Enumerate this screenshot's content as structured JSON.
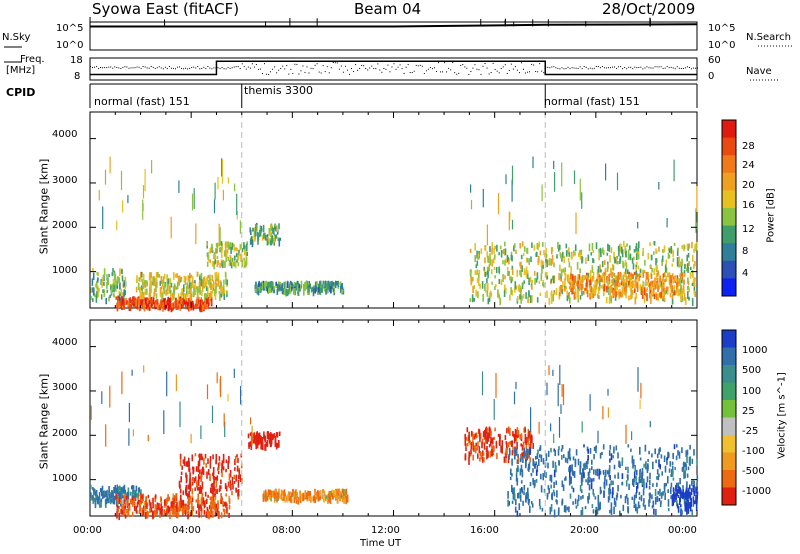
{
  "header": {
    "station": "Syowa East (fitACF)",
    "beam": "Beam 04",
    "date": "28/Oct/2009"
  },
  "strips": {
    "nsky_label": "N.Sky",
    "nsearch_label": "N.Search",
    "freq_label_line1": "Freq.",
    "freq_label_line2": "[MHz]",
    "nave_label": "Nave",
    "cpid_label": "CPID",
    "noise_left_ticks": [
      "10^5",
      "10^0"
    ],
    "noise_right_ticks": [
      "10^5",
      "10^0"
    ],
    "freq_ticks": [
      "18",
      "8"
    ],
    "nave_ticks": [
      "60",
      "0"
    ],
    "modes": [
      {
        "name": "normal (fast) 151",
        "start_hour": 0,
        "end_hour": 6
      },
      {
        "name": "themis 3300",
        "start_hour": 6,
        "end_hour": 18
      },
      {
        "name": "normal (fast) 151",
        "start_hour": 18,
        "end_hour": 24
      }
    ]
  },
  "axes": {
    "ylabel": "Slant Range [km]",
    "xlabel": "Time UT",
    "y_ticks": [
      "1000",
      "2000",
      "3000",
      "4000"
    ],
    "x_ticks": [
      "00:00",
      "04:00",
      "08:00",
      "12:00",
      "16:00",
      "20:00",
      "00:00"
    ]
  },
  "colorbars": {
    "power": {
      "label": "Power [dB]",
      "ticks": [
        "4",
        "8",
        "12",
        "16",
        "20",
        "24",
        "28"
      ],
      "colors": [
        "#0b22f0",
        "#2c4fb8",
        "#2f7f9a",
        "#3f9e6a",
        "#8ac440",
        "#e8c020",
        "#f0a020",
        "#f07a18",
        "#e84a10",
        "#e01a10"
      ]
    },
    "velocity": {
      "label": "Velocity [m s^-1]",
      "ticks": [
        "1000",
        "500",
        "100",
        "25",
        "-25",
        "-100",
        "-500",
        "-1000"
      ],
      "colors": [
        "#1a3ec8",
        "#2f6faa",
        "#3a8e8e",
        "#3fa26a",
        "#74c23c",
        "#c0c0c0",
        "#f0c030",
        "#f09a20",
        "#ee6a10",
        "#e02010"
      ]
    }
  },
  "chart_data": [
    {
      "type": "line",
      "title": "Syowa East (fitACF) Beam 04 28/Oct/2009",
      "series": [
        {
          "name": "N.Sky",
          "x_hours": [
            0,
            6,
            12,
            18,
            24
          ],
          "values_log10": [
            4.2,
            4.2,
            4.2,
            4.5,
            4.6
          ]
        },
        {
          "name": "N.Search",
          "x_hours": [
            0,
            6,
            12,
            18,
            24
          ],
          "values_log10": [
            4.2,
            4.2,
            4.2,
            4.5,
            4.6
          ]
        }
      ],
      "ylim_log10": [
        0,
        5
      ]
    },
    {
      "type": "line",
      "series": [
        {
          "name": "Freq.",
          "x_hours": [
            0,
            5,
            5,
            18,
            18,
            24
          ],
          "values": [
            10.5,
            10.5,
            16.5,
            16.5,
            10.5,
            10.5
          ]
        },
        {
          "name": "Nave",
          "x_hours": [
            0,
            6,
            6,
            18,
            18,
            24
          ],
          "values": [
            50,
            50,
            42,
            42,
            50,
            50
          ]
        }
      ],
      "ylim": [
        8,
        18
      ],
      "y2lim": [
        0,
        60
      ]
    },
    {
      "type": "heatmap",
      "quantity": "Power",
      "units": "dB",
      "xlabel": "Time UT",
      "ylabel": "Slant Range [km]",
      "xlim_hours": [
        0,
        24
      ],
      "ylim_km": [
        180,
        4600
      ],
      "zlim": [
        0,
        30
      ],
      "regions": [
        {
          "t0": 0.0,
          "t1": 1.4,
          "r0": 400,
          "r1": 1100,
          "value": 12
        },
        {
          "t0": 1.0,
          "t1": 4.8,
          "r0": 250,
          "r1": 450,
          "value": 26
        },
        {
          "t0": 1.8,
          "t1": 5.4,
          "r0": 500,
          "r1": 1000,
          "value": 16
        },
        {
          "t0": 4.6,
          "t1": 6.2,
          "r0": 1200,
          "r1": 1700,
          "value": 14
        },
        {
          "t0": 6.3,
          "t1": 7.5,
          "r0": 1700,
          "r1": 2100,
          "value": 12
        },
        {
          "t0": 6.5,
          "t1": 10.0,
          "r0": 600,
          "r1": 800,
          "value": 10
        },
        {
          "t0": 15.0,
          "t1": 24.0,
          "r0": 400,
          "r1": 1700,
          "value": 14
        },
        {
          "t0": 18.5,
          "t1": 23.5,
          "r0": 500,
          "r1": 1000,
          "value": 20
        }
      ]
    },
    {
      "type": "heatmap",
      "quantity": "Velocity",
      "units": "m s^-1",
      "xlabel": "Time UT",
      "ylabel": "Slant Range [km]",
      "xlim_hours": [
        0,
        24
      ],
      "ylim_km": [
        180,
        4600
      ],
      "zlim": [
        -1000,
        1000
      ],
      "regions": [
        {
          "t0": 0.0,
          "t1": 2.0,
          "r0": 500,
          "r1": 900,
          "value": 100
        },
        {
          "t0": 1.0,
          "t1": 5.5,
          "r0": 250,
          "r1": 700,
          "value": -200
        },
        {
          "t0": 3.5,
          "t1": 6.0,
          "r0": 700,
          "r1": 1600,
          "value": -400
        },
        {
          "t0": 6.2,
          "t1": 7.5,
          "r0": 1800,
          "r1": 2100,
          "value": -800
        },
        {
          "t0": 6.8,
          "t1": 10.2,
          "r0": 600,
          "r1": 800,
          "value": -60
        },
        {
          "t0": 14.8,
          "t1": 17.5,
          "r0": 1500,
          "r1": 2200,
          "value": -300
        },
        {
          "t0": 16.5,
          "t1": 24.0,
          "r0": 300,
          "r1": 1800,
          "value": 150
        },
        {
          "t0": 23.0,
          "t1": 24.0,
          "r0": 400,
          "r1": 900,
          "value": 700
        }
      ]
    }
  ]
}
